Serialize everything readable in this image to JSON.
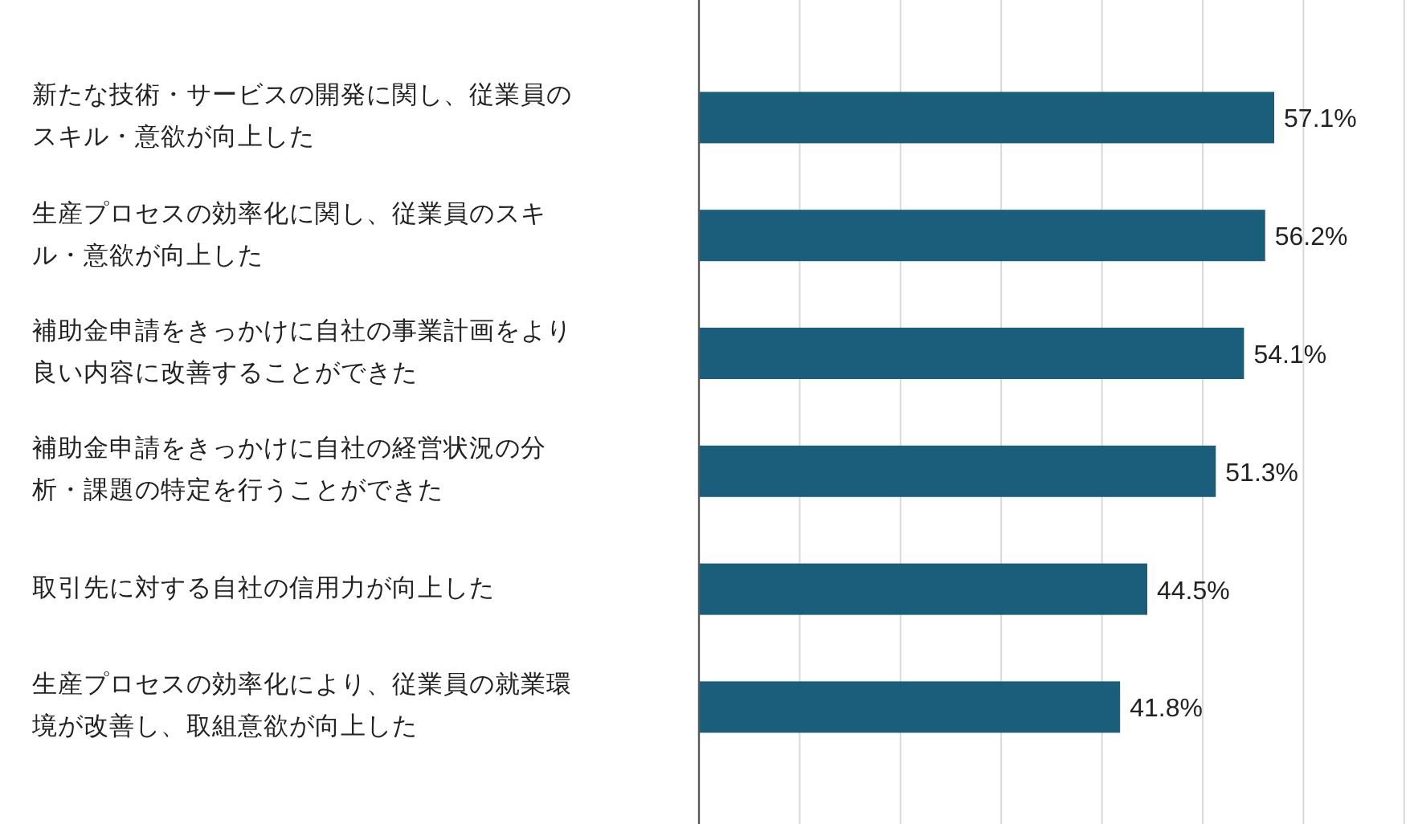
{
  "chart_data": {
    "type": "bar",
    "orientation": "horizontal",
    "categories": [
      "新たな技術・サービスの開発に関し、従業員のスキル・意欲が向上した",
      "生産プロセスの効率化に関し、従業員のスキル・意欲が向上した",
      "補助金申請をきっかけに自社の事業計画をより良い内容に改善することができた",
      "補助金申請をきっかけに自社の経営状況の分析・課題の特定を行うことができた",
      "取引先に対する自社の信用力が向上した",
      "生産プロセスの効率化により、従業員の就業環境が改善し、取組意欲が向上した"
    ],
    "values": [
      57.1,
      56.2,
      54.1,
      51.3,
      44.5,
      41.8
    ],
    "value_labels": [
      "57.1%",
      "56.2%",
      "54.1%",
      "51.3%",
      "44.5%",
      "41.8%"
    ],
    "color": "#1b5e7b",
    "xlim": [
      0,
      70
    ],
    "xticks": [
      {
        "value": 0,
        "label": null
      },
      {
        "value": 10,
        "label": null
      },
      {
        "value": 20,
        "label": null
      },
      {
        "value": 30,
        "label": null
      },
      {
        "value": 40,
        "label": null
      },
      {
        "value": 50,
        "label": null
      },
      {
        "value": 60,
        "label": null
      },
      {
        "value": 70,
        "label": null
      }
    ],
    "grid": "x"
  }
}
